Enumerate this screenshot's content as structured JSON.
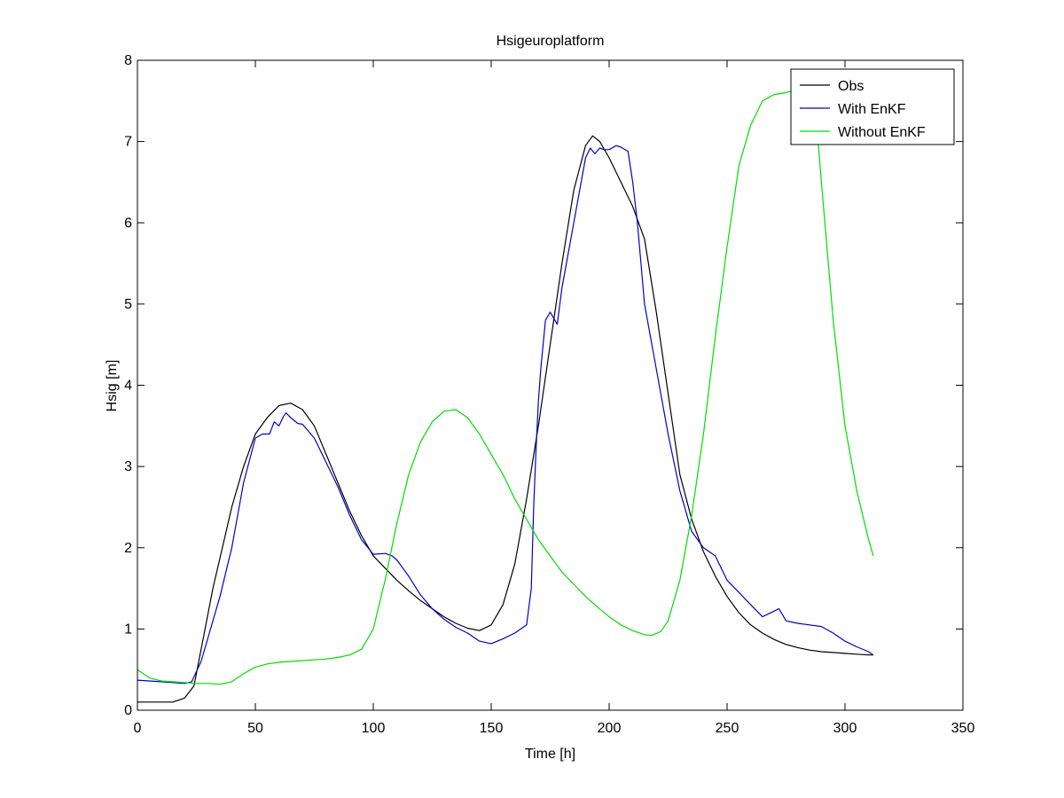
{
  "chart_data": {
    "type": "line",
    "title": "Hsigeuroplatform",
    "xlabel": "Time [h]",
    "ylabel": "Hsig [m]",
    "xlim": [
      0,
      350
    ],
    "ylim": [
      0,
      8
    ],
    "xticks": [
      0,
      50,
      100,
      150,
      200,
      250,
      300,
      350
    ],
    "yticks": [
      0,
      1,
      2,
      3,
      4,
      5,
      6,
      7,
      8
    ],
    "grid": false,
    "legend": "top-right",
    "series": [
      {
        "name": "Obs",
        "color": "#000000",
        "x": [
          0,
          10,
          15,
          20,
          24,
          28,
          32,
          36,
          40,
          45,
          50,
          55,
          60,
          65,
          70,
          75,
          80,
          85,
          90,
          95,
          100,
          105,
          110,
          115,
          120,
          125,
          130,
          135,
          140,
          145,
          150,
          155,
          160,
          165,
          170,
          175,
          180,
          185,
          190,
          193,
          196,
          200,
          205,
          210,
          215,
          220,
          225,
          230,
          235,
          240,
          245,
          250,
          255,
          260,
          265,
          270,
          275,
          280,
          285,
          290,
          295,
          300,
          305,
          310,
          312
        ],
        "y": [
          0.1,
          0.1,
          0.1,
          0.15,
          0.3,
          0.9,
          1.5,
          2.0,
          2.5,
          3.0,
          3.4,
          3.6,
          3.75,
          3.78,
          3.7,
          3.5,
          3.15,
          2.8,
          2.45,
          2.15,
          1.9,
          1.75,
          1.6,
          1.47,
          1.35,
          1.25,
          1.15,
          1.07,
          1.01,
          0.98,
          1.05,
          1.3,
          1.8,
          2.6,
          3.5,
          4.5,
          5.5,
          6.4,
          6.95,
          7.07,
          7.0,
          6.8,
          6.5,
          6.2,
          5.8,
          4.9,
          3.9,
          2.9,
          2.35,
          1.95,
          1.65,
          1.4,
          1.2,
          1.05,
          0.95,
          0.87,
          0.81,
          0.77,
          0.74,
          0.72,
          0.71,
          0.7,
          0.69,
          0.68,
          0.68
        ]
      },
      {
        "name": "With EnKF",
        "color": "#0000cc",
        "x": [
          0,
          10,
          15,
          20,
          23,
          27,
          30,
          35,
          40,
          45,
          50,
          53,
          56,
          58,
          60,
          62,
          63,
          65,
          68,
          70,
          75,
          80,
          85,
          90,
          95,
          100,
          105,
          108,
          110,
          115,
          120,
          125,
          130,
          135,
          140,
          145,
          150,
          155,
          160,
          165,
          167,
          168,
          169,
          170,
          171,
          173,
          175,
          177,
          178,
          180,
          185,
          190,
          192,
          194,
          196,
          198,
          200,
          203,
          205,
          208,
          210,
          212,
          215,
          220,
          225,
          230,
          235,
          240,
          245,
          250,
          255,
          260,
          265,
          270,
          272,
          275,
          280,
          285,
          290,
          295,
          300,
          305,
          310,
          312
        ],
        "y": [
          0.37,
          0.35,
          0.34,
          0.33,
          0.35,
          0.6,
          0.9,
          1.4,
          2.0,
          2.8,
          3.35,
          3.4,
          3.4,
          3.55,
          3.5,
          3.62,
          3.66,
          3.6,
          3.53,
          3.52,
          3.35,
          3.05,
          2.75,
          2.4,
          2.1,
          1.92,
          1.93,
          1.9,
          1.85,
          1.65,
          1.42,
          1.25,
          1.12,
          1.02,
          0.95,
          0.85,
          0.82,
          0.88,
          0.95,
          1.05,
          1.5,
          2.5,
          3.2,
          3.8,
          4.2,
          4.8,
          4.9,
          4.8,
          4.75,
          5.2,
          6.0,
          6.8,
          6.92,
          6.85,
          6.92,
          6.9,
          6.9,
          6.95,
          6.93,
          6.88,
          6.5,
          6.0,
          5.0,
          4.2,
          3.4,
          2.7,
          2.2,
          2.0,
          1.9,
          1.6,
          1.45,
          1.3,
          1.15,
          1.22,
          1.25,
          1.1,
          1.07,
          1.05,
          1.03,
          0.95,
          0.85,
          0.78,
          0.72,
          0.68
        ]
      },
      {
        "name": "Without EnKF",
        "color": "#00dd00",
        "x": [
          0,
          5,
          10,
          15,
          20,
          25,
          30,
          35,
          40,
          45,
          50,
          55,
          60,
          65,
          70,
          75,
          80,
          85,
          90,
          95,
          100,
          105,
          110,
          115,
          120,
          125,
          130,
          135,
          140,
          145,
          150,
          155,
          160,
          165,
          170,
          175,
          180,
          185,
          190,
          195,
          200,
          205,
          210,
          215,
          218,
          222,
          225,
          230,
          235,
          240,
          245,
          250,
          255,
          260,
          265,
          270,
          275,
          280,
          285,
          288,
          290,
          295,
          300,
          305,
          310,
          312
        ],
        "y": [
          0.5,
          0.4,
          0.36,
          0.35,
          0.34,
          0.33,
          0.33,
          0.32,
          0.35,
          0.45,
          0.53,
          0.57,
          0.59,
          0.6,
          0.61,
          0.62,
          0.63,
          0.65,
          0.68,
          0.75,
          1.0,
          1.6,
          2.3,
          2.9,
          3.3,
          3.55,
          3.68,
          3.7,
          3.6,
          3.4,
          3.15,
          2.9,
          2.6,
          2.35,
          2.1,
          1.9,
          1.7,
          1.55,
          1.4,
          1.27,
          1.15,
          1.05,
          0.98,
          0.93,
          0.92,
          0.97,
          1.1,
          1.6,
          2.4,
          3.4,
          4.6,
          5.7,
          6.7,
          7.2,
          7.5,
          7.58,
          7.6,
          7.65,
          7.6,
          7.2,
          6.5,
          4.8,
          3.5,
          2.7,
          2.1,
          1.9
        ]
      }
    ]
  }
}
